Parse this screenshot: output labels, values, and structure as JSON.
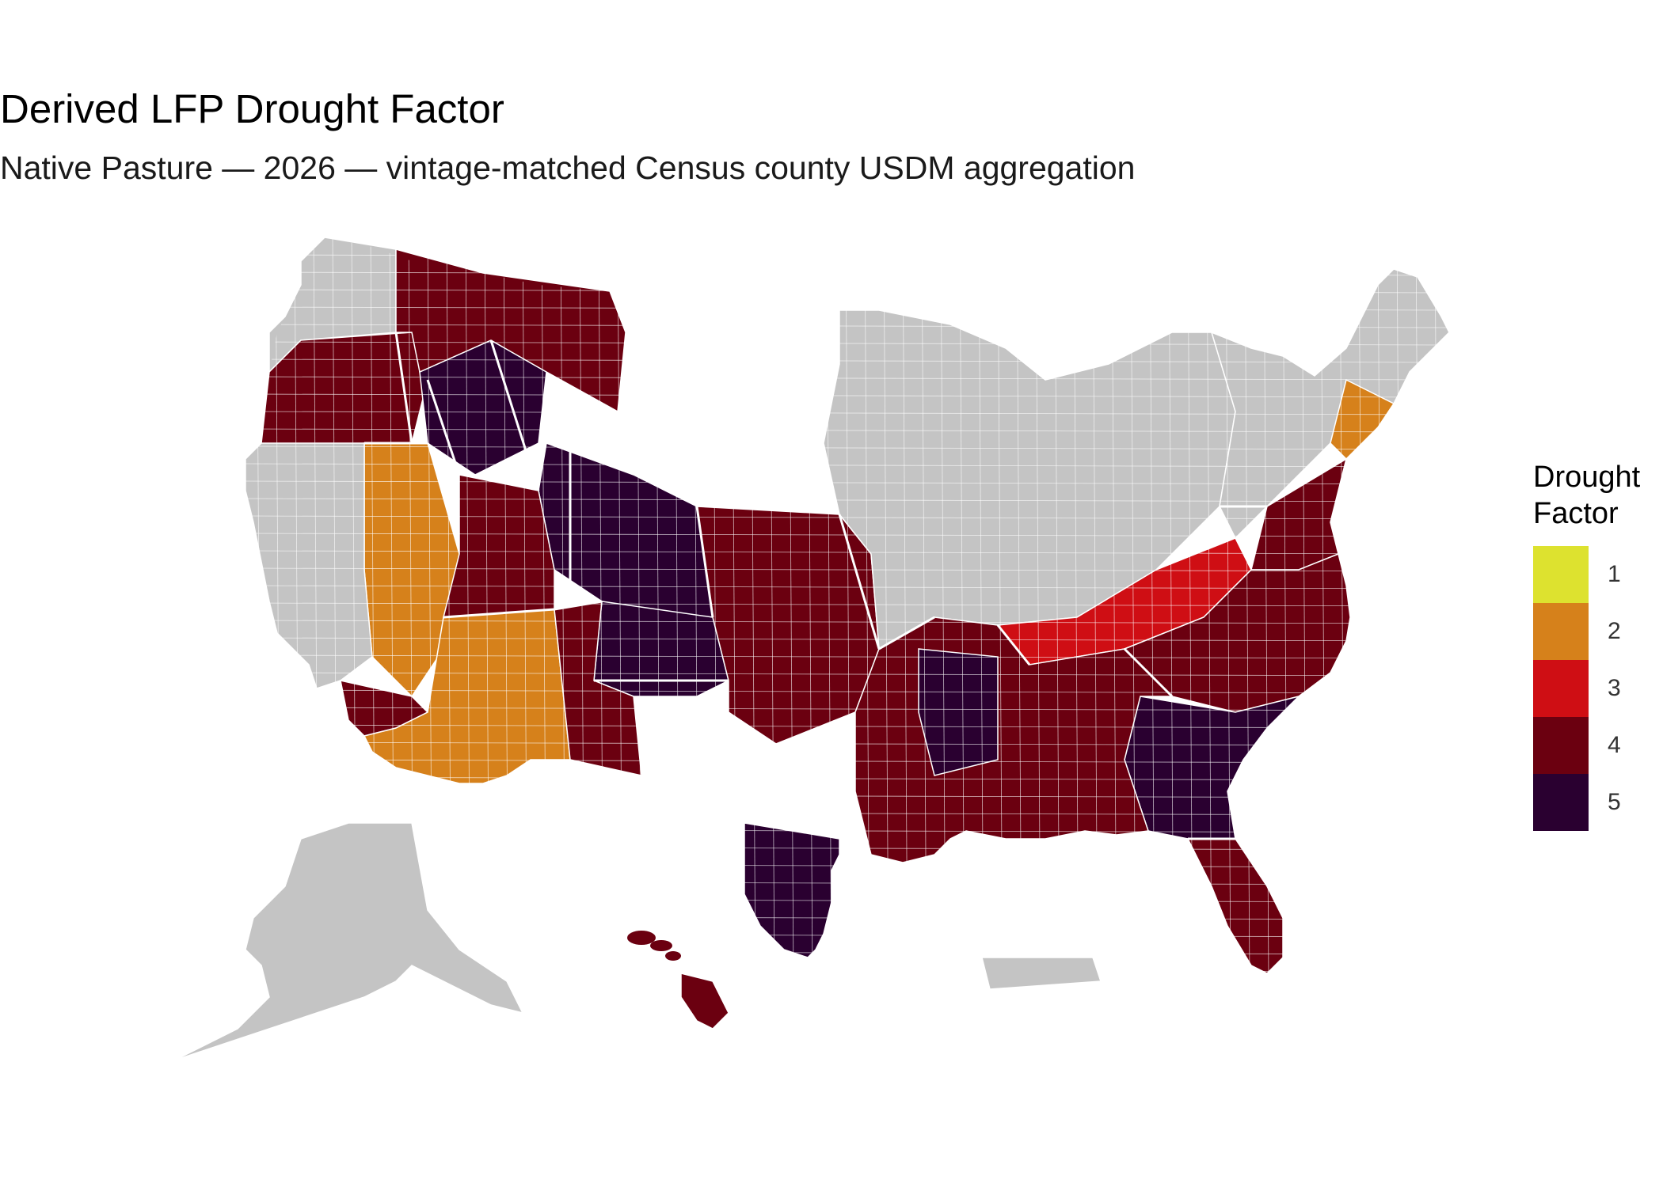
{
  "title": "Derived LFP Drought Factor",
  "subtitle": "Native Pasture — 2026 — vintage-matched Census county USDM aggregation",
  "legend": {
    "title": "Drought\nFactor",
    "items": [
      {
        "label": "1",
        "color": "#dde22f"
      },
      {
        "label": "2",
        "color": "#d6811b"
      },
      {
        "label": "3",
        "color": "#cf0e14"
      },
      {
        "label": "4",
        "color": "#6b0010"
      },
      {
        "label": "5",
        "color": "#2a0030"
      }
    ]
  },
  "no_data_color": "#c4c4c4",
  "county_border_color": "#ffffff",
  "map_regions": [
    {
      "region": "pacific-northwest-coast",
      "factor": null
    },
    {
      "region": "oregon-interior",
      "factor": 4
    },
    {
      "region": "idaho-central",
      "factor": 5
    },
    {
      "region": "montana",
      "factor": 4
    },
    {
      "region": "wyoming-dakotas-border",
      "factor": 5
    },
    {
      "region": "nevada",
      "factor": 2
    },
    {
      "region": "california",
      "factor": null
    },
    {
      "region": "southern-california",
      "factor": 4
    },
    {
      "region": "arizona",
      "factor": 2
    },
    {
      "region": "utah",
      "factor": 4
    },
    {
      "region": "colorado",
      "factor": 5
    },
    {
      "region": "new-mexico",
      "factor": 4
    },
    {
      "region": "kansas-oklahoma",
      "factor": 4
    },
    {
      "region": "upper-midwest",
      "factor": null
    },
    {
      "region": "northeast",
      "factor": null
    },
    {
      "region": "new-england-coast",
      "factor": 2
    },
    {
      "region": "mid-atlantic",
      "factor": 4
    },
    {
      "region": "tennessee-kentucky",
      "factor": 3
    },
    {
      "region": "carolinas",
      "factor": 4
    },
    {
      "region": "georgia",
      "factor": 5
    },
    {
      "region": "florida",
      "factor": 4
    },
    {
      "region": "gulf-coast",
      "factor": 4
    },
    {
      "region": "south-texas",
      "factor": 5
    },
    {
      "region": "arkansas",
      "factor": 5
    },
    {
      "region": "alaska",
      "factor": null
    },
    {
      "region": "hawaii",
      "factor": 4
    },
    {
      "region": "puerto-rico",
      "factor": null
    }
  ]
}
